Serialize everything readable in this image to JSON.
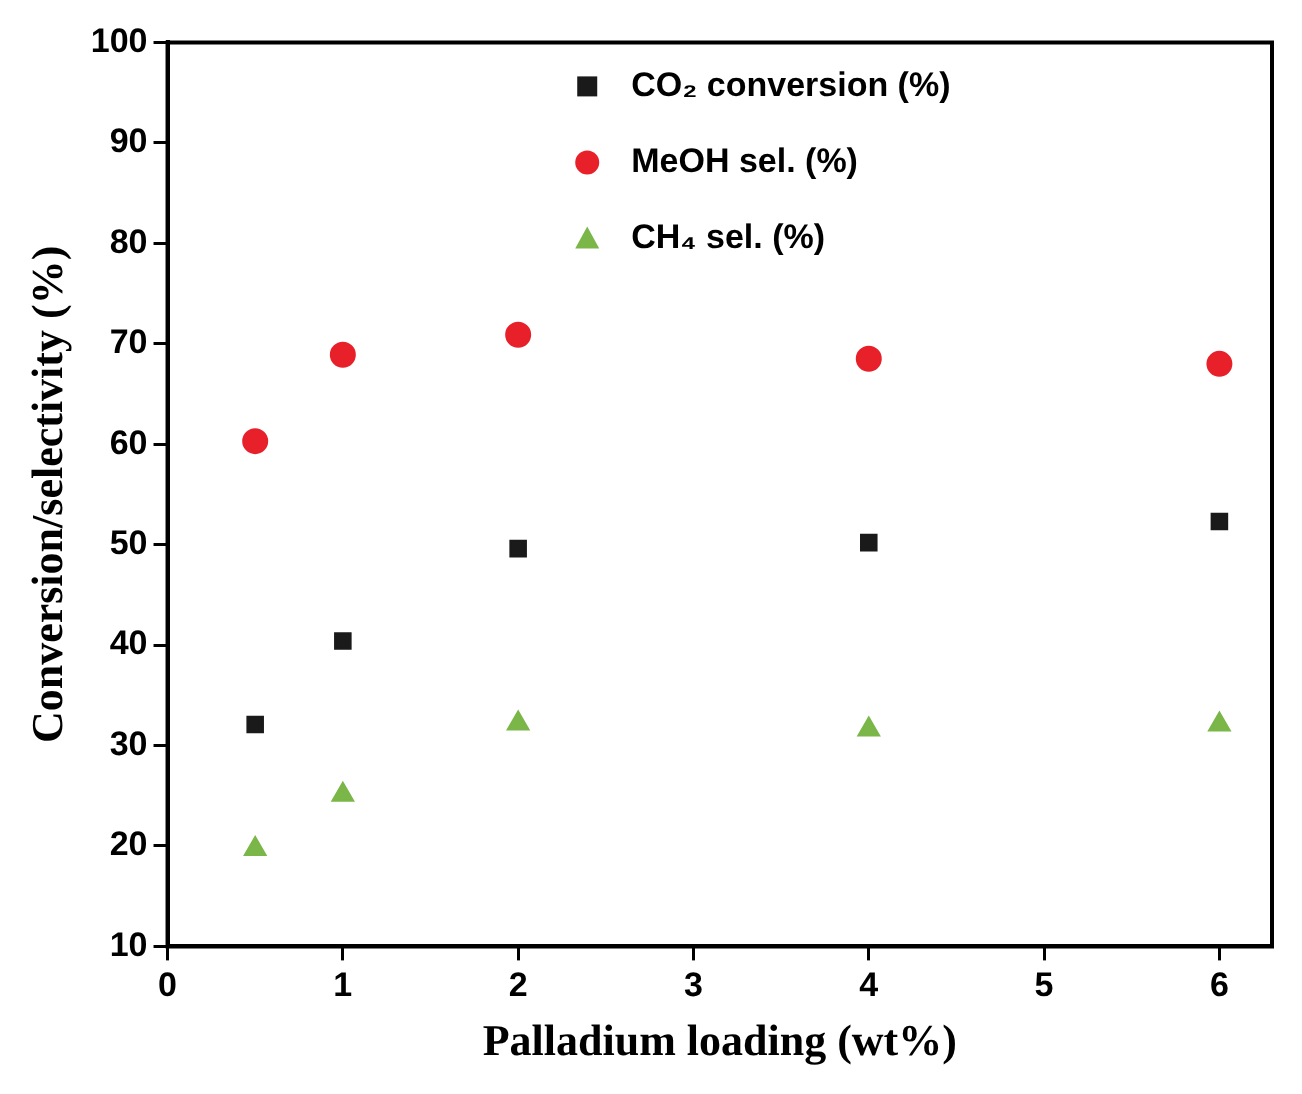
{
  "chart_data": {
    "type": "scatter",
    "xlabel": "Palladium loading (wt%)",
    "ylabel": "Conversion/selectivity (%)",
    "x": [
      0.5,
      1,
      2,
      4,
      6
    ],
    "series": [
      {
        "name": "CO₂ conversion (%)",
        "color": "#1a1a1a",
        "marker": "square",
        "values": [
          32.1,
          40.4,
          49.6,
          50.2,
          52.3
        ]
      },
      {
        "name": "MeOH sel. (%)",
        "color": "#e8202a",
        "marker": "circle",
        "values": [
          60.3,
          68.9,
          70.9,
          68.5,
          68.0
        ]
      },
      {
        "name": "CH₄ sel. (%)",
        "color": "#7ab648",
        "marker": "triangle",
        "values": [
          19.7,
          25.1,
          32.2,
          31.6,
          32.1
        ]
      }
    ],
    "xlim": [
      0,
      6.3
    ],
    "xticks": [
      0,
      1,
      2,
      3,
      4,
      5,
      6
    ],
    "ylim": [
      10,
      100
    ],
    "yticks": [
      10,
      20,
      30,
      40,
      50,
      60,
      70,
      80,
      90,
      100
    ],
    "grid": false,
    "legend": "top right"
  }
}
